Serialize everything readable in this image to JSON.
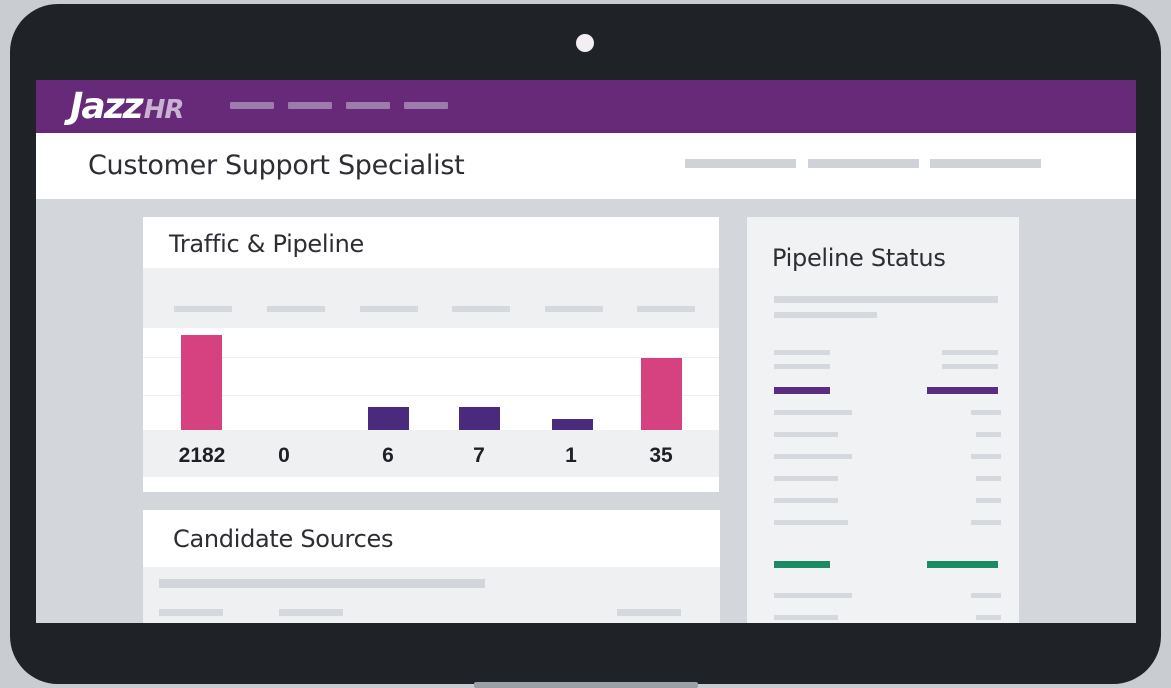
{
  "header": {
    "logo_text": "Jazz",
    "logo_suffix": "HR",
    "brand_color": "#672a78"
  },
  "page": {
    "title": "Customer Support Specialist"
  },
  "traffic_pipeline": {
    "title": "Traffic & Pipeline",
    "stages": [
      {
        "value": "2182",
        "color": "#d6417f"
      },
      {
        "value": "0",
        "color": "#4a2a7c"
      },
      {
        "value": "6",
        "color": "#4a2a7c"
      },
      {
        "value": "7",
        "color": "#4a2a7c"
      },
      {
        "value": "1",
        "color": "#4a2a7c"
      },
      {
        "value": "35",
        "color": "#d6417f"
      }
    ]
  },
  "candidate_sources": {
    "title": "Candidate Sources"
  },
  "pipeline_status": {
    "title": "Pipeline Status",
    "accent_purple": "#5b2d82",
    "accent_green": "#1c8a62"
  }
}
